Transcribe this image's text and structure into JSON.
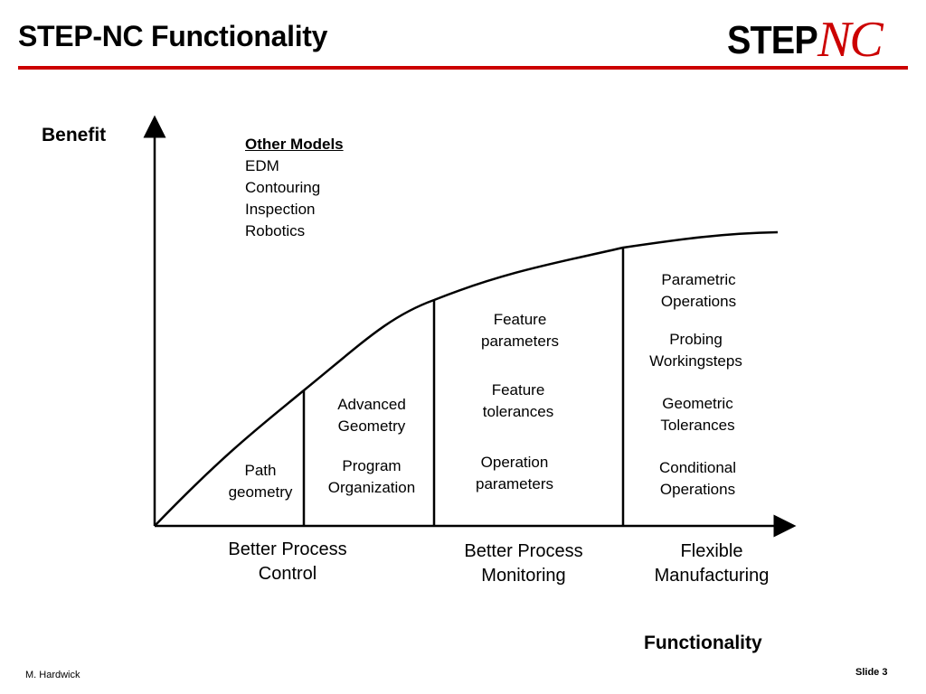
{
  "title": "STEP-NC Functionality",
  "logo": {
    "step": "STEP",
    "nc": "NC"
  },
  "axes": {
    "y_label": "Benefit",
    "x_label": "Functionality"
  },
  "other_models": {
    "heading": "Other Models",
    "items": [
      "EDM",
      "Contouring",
      "Inspection",
      "Robotics"
    ]
  },
  "regions": {
    "r1": {
      "items": [
        "Path\ngeometry"
      ]
    },
    "r2": {
      "items": [
        "Advanced\nGeometry",
        "Program\nOrganization"
      ]
    },
    "r3": {
      "items": [
        "Feature\nparameters",
        "Feature\ntolerances",
        "Operation\nparameters"
      ]
    },
    "r4": {
      "items": [
        "Parametric\nOperations",
        "Probing\nWorkingsteps",
        "Geometric\nTolerances",
        "Conditional\nOperations"
      ]
    }
  },
  "categories": {
    "control": "Better Process\nControl",
    "monitoring": "Better Process\nMonitoring",
    "flexible": "Flexible\nManufacturing"
  },
  "footer": {
    "author": "M. Hardwick",
    "slide": "Slide 3"
  },
  "colors": {
    "accent": "#cc0000",
    "line": "#000000"
  }
}
